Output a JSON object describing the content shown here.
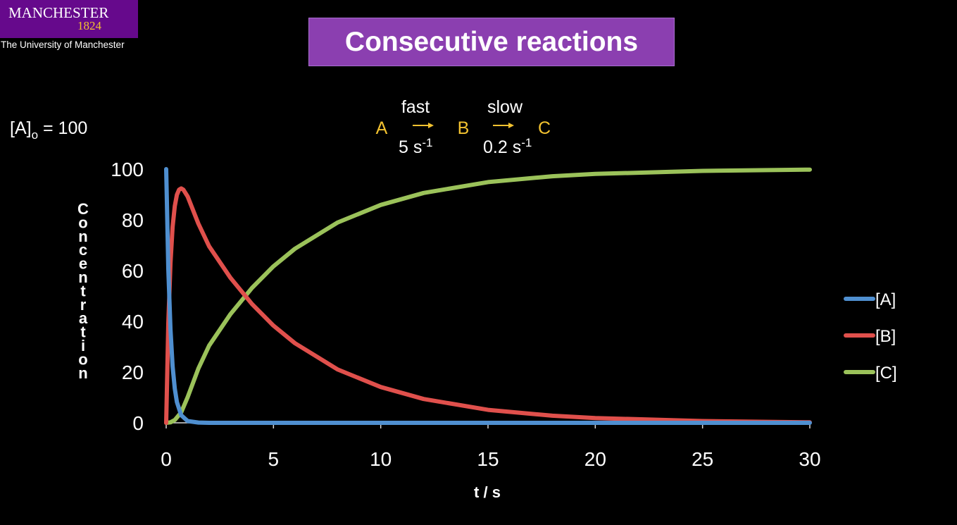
{
  "logo": {
    "wordmark": "MANCHESTER",
    "year": "1824",
    "university": "The University of Manchester"
  },
  "slide": {
    "title": "Consecutive reactions"
  },
  "annotation": {
    "initial_condition": {
      "label": "[A]",
      "subscript": "o",
      "value": " = 100"
    },
    "scheme": {
      "species": [
        "A",
        "B",
        "C"
      ],
      "step1": {
        "speed": "fast",
        "rate": "5 s",
        "rate_exp": "-1"
      },
      "step2": {
        "speed": "slow",
        "rate": "0.2 s",
        "rate_exp": "-1"
      }
    }
  },
  "chart_data": {
    "type": "line",
    "xlabel": "t / s",
    "ylabel": "Concentration",
    "xlim": [
      0,
      30
    ],
    "ylim": [
      0,
      100
    ],
    "xticks": [
      0,
      5,
      10,
      15,
      20,
      25,
      30
    ],
    "yticks": [
      0,
      20,
      40,
      60,
      80,
      100
    ],
    "grid": false,
    "legend_position": "right",
    "series": [
      {
        "name": "[A]",
        "color": "#4f8fd0",
        "x": [
          0,
          0.1,
          0.2,
          0.3,
          0.4,
          0.5,
          0.7,
          1,
          1.5,
          2,
          30
        ],
        "y": [
          100,
          60.7,
          36.8,
          22.3,
          13.5,
          8.2,
          3.0,
          0.7,
          0.1,
          0,
          0
        ]
      },
      {
        "name": "[B]",
        "color": "#e0504c",
        "x": [
          0,
          0.1,
          0.2,
          0.3,
          0.4,
          0.5,
          0.6,
          0.7,
          0.8,
          1,
          1.5,
          2,
          3,
          4,
          5,
          6,
          8,
          10,
          12,
          15,
          18,
          20,
          25,
          30
        ],
        "y": [
          0,
          39.2,
          63.0,
          77.2,
          85.4,
          89.9,
          91.9,
          92.4,
          91.9,
          89.2,
          78.5,
          69.6,
          57.1,
          46.8,
          38.3,
          31.4,
          21.0,
          14.1,
          9.4,
          5.1,
          2.8,
          1.9,
          0.7,
          0.2
        ]
      },
      {
        "name": "[C]",
        "color": "#9bc25a",
        "x": [
          0,
          0.2,
          0.4,
          0.7,
          1,
          1.5,
          2,
          3,
          4,
          5,
          6,
          8,
          10,
          12,
          15,
          18,
          20,
          25,
          30
        ],
        "y": [
          0,
          0.2,
          1.1,
          4.1,
          10.1,
          21.4,
          30.4,
          42.9,
          53.2,
          61.7,
          68.6,
          79.0,
          85.9,
          90.6,
          94.9,
          97.2,
          98.1,
          99.3,
          99.8
        ]
      }
    ]
  }
}
